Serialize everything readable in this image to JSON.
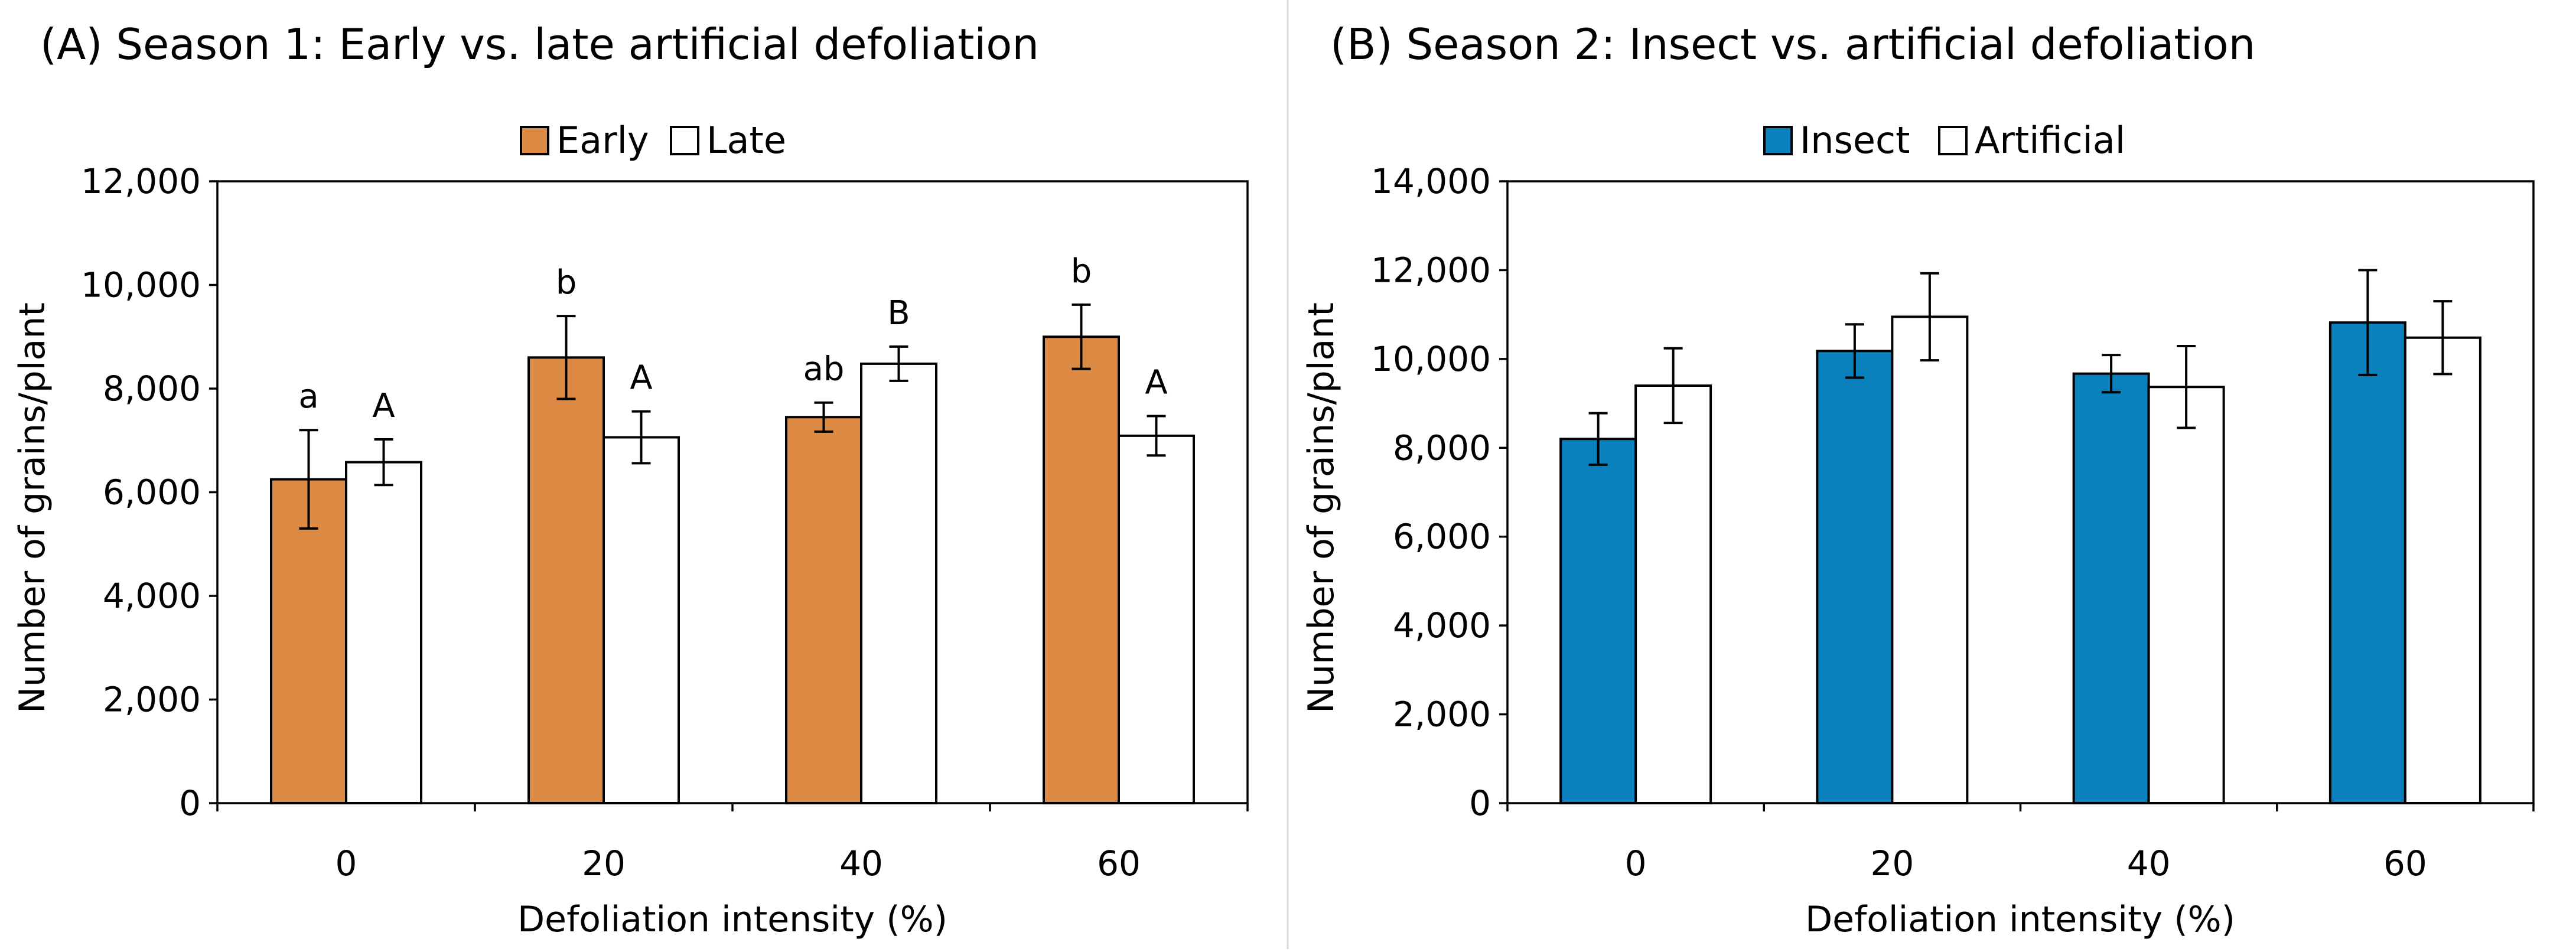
{
  "chart_data": [
    {
      "id": "A",
      "type": "bar",
      "title": "(A) Season 1: Early vs. late artificial defoliation",
      "xlabel": "Defoliation intensity (%)",
      "ylabel": "Number of grains/plant",
      "categories": [
        "0",
        "20",
        "40",
        "60"
      ],
      "ylim": [
        0,
        12000
      ],
      "ytick_step": 2000,
      "ytick_labels": [
        "0",
        "2,000",
        "4,000",
        "6,000",
        "8,000",
        "10,000",
        "12,000"
      ],
      "legend_position": "top-center",
      "series": [
        {
          "name": "Early",
          "color": "#DD8B44",
          "values": [
            6250,
            8600,
            7450,
            9000
          ],
          "errors": [
            950,
            800,
            280,
            620
          ],
          "letters": [
            "a",
            "b",
            "ab",
            "b"
          ]
        },
        {
          "name": "Late",
          "color": "#FFFFFF",
          "values": [
            6580,
            7060,
            8480,
            7090
          ],
          "errors": [
            440,
            500,
            330,
            380
          ],
          "letters": [
            "A",
            "A",
            "B",
            "A"
          ]
        }
      ]
    },
    {
      "id": "B",
      "type": "bar",
      "title": "(B) Season 2: Insect vs. artificial defoliation",
      "xlabel": "Defoliation intensity (%)",
      "ylabel": "Number of grains/plant",
      "categories": [
        "0",
        "20",
        "40",
        "60"
      ],
      "ylim": [
        0,
        14000
      ],
      "ytick_step": 2000,
      "ytick_labels": [
        "0",
        "2,000",
        "4,000",
        "6,000",
        "8,000",
        "10,000",
        "12,000",
        "14,000"
      ],
      "legend_position": "top-center",
      "series": [
        {
          "name": "Insect",
          "color": "#0A80BC",
          "values": [
            8200,
            10180,
            9670,
            10820
          ],
          "errors": [
            580,
            600,
            420,
            1180
          ],
          "letters": [
            "",
            "",
            "",
            ""
          ]
        },
        {
          "name": "Artificial",
          "color": "#FFFFFF",
          "values": [
            9400,
            10950,
            9370,
            10480
          ],
          "errors": [
            840,
            980,
            920,
            820
          ],
          "letters": [
            "",
            "",
            "",
            ""
          ]
        }
      ]
    }
  ]
}
